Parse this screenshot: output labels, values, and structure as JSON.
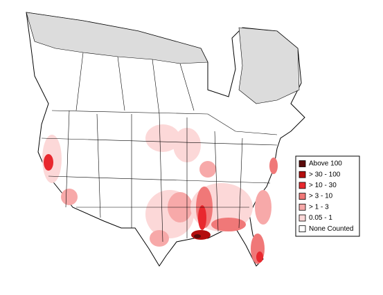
{
  "legend": {
    "items": [
      {
        "label": "Above 100",
        "color": "#5a0a0a"
      },
      {
        "label": "> 30 - 100",
        "color": "#b30e0e"
      },
      {
        "label": "> 10 - 30",
        "color": "#e8282e"
      },
      {
        "label": "> 3 - 10",
        "color": "#f07878"
      },
      {
        "label": "> 1 - 3",
        "color": "#f7a9a9"
      },
      {
        "label": "0.05 - 1",
        "color": "#fcd8d8"
      },
      {
        "label": "None Counted",
        "color": "#ffffff"
      }
    ]
  }
}
